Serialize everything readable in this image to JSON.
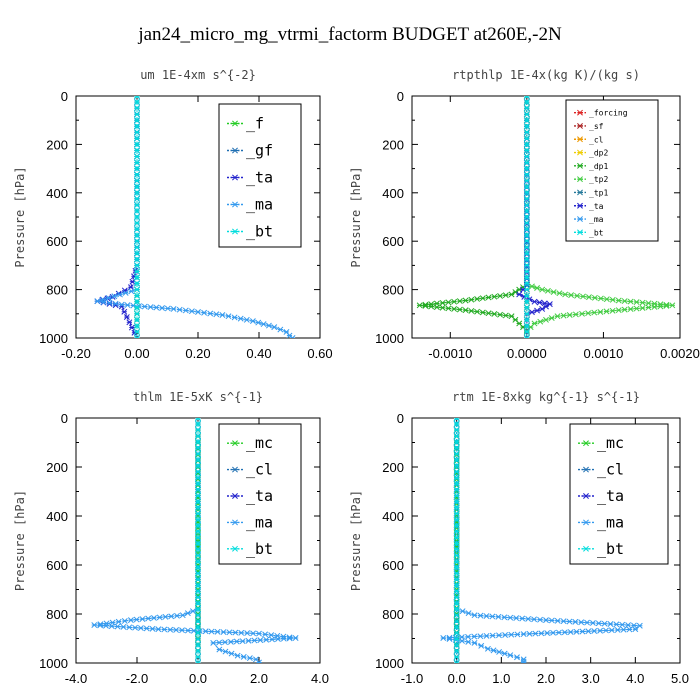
{
  "figure": {
    "title": "jan24_micro_mg_vtrmi_factorm  BUDGET at260E,-2N"
  },
  "chart_data": [
    {
      "type": "line",
      "title": "um  1E-4xm s^{-2}",
      "ylabel": "Pressure [hPa]",
      "xlim": [
        -0.2,
        0.6
      ],
      "ylim": [
        1000,
        0
      ],
      "xticks": [
        "-0.20",
        "0.00",
        "0.20",
        "0.40",
        "0.60"
      ],
      "yticks": [
        "0",
        "200",
        "400",
        "600",
        "800",
        "1000"
      ],
      "legend": "top-right",
      "series": [
        {
          "name": "_f",
          "color": "#22cc22",
          "values": [
            [
              0,
              0
            ],
            [
              0,
              25
            ],
            [
              0,
              50
            ],
            [
              0,
              75
            ],
            [
              0,
              100
            ],
            [
              0,
              125
            ],
            [
              0,
              150
            ],
            [
              0,
              175
            ],
            [
              0,
              200
            ],
            [
              0,
              225
            ],
            [
              0,
              250
            ],
            [
              0,
              275
            ],
            [
              0,
              300
            ],
            [
              0,
              325
            ],
            [
              0,
              350
            ],
            [
              0,
              375
            ],
            [
              0,
              400
            ],
            [
              0,
              425
            ],
            [
              0,
              450
            ],
            [
              0,
              475
            ],
            [
              0,
              500
            ],
            [
              0,
              525
            ],
            [
              0,
              550
            ],
            [
              0,
              575
            ],
            [
              0,
              600
            ],
            [
              0,
              625
            ],
            [
              0,
              650
            ],
            [
              0,
              675
            ],
            [
              0,
              700
            ],
            [
              0,
              725
            ],
            [
              0,
              750
            ],
            [
              0,
              775
            ],
            [
              0,
              800
            ],
            [
              0,
              825
            ],
            [
              0,
              850
            ],
            [
              0,
              875
            ],
            [
              0,
              900
            ],
            [
              0,
              925
            ],
            [
              0,
              950
            ],
            [
              0,
              975
            ],
            [
              0,
              1000
            ]
          ]
        },
        {
          "name": "_gf",
          "color": "#1f6fb2",
          "values": [
            [
              0,
              0
            ],
            [
              0,
              200
            ],
            [
              0,
              400
            ],
            [
              0,
              600
            ],
            [
              0,
              800
            ],
            [
              0,
              1000
            ]
          ]
        },
        {
          "name": "_ta",
          "color": "#2222cc",
          "values": [
            [
              0,
              0
            ],
            [
              0,
              700
            ],
            [
              -0.02,
              790
            ],
            [
              -0.08,
              830
            ],
            [
              -0.13,
              848
            ],
            [
              -0.05,
              870
            ],
            [
              0,
              1000
            ]
          ]
        },
        {
          "name": "_ma",
          "color": "#3399ee",
          "values": [
            [
              0,
              0
            ],
            [
              0,
              700
            ],
            [
              0,
              800
            ],
            [
              -0.13,
              848
            ],
            [
              -0.05,
              862
            ],
            [
              0.12,
              880
            ],
            [
              0.28,
              905
            ],
            [
              0.38,
              930
            ],
            [
              0.45,
              955
            ],
            [
              0.49,
              975
            ],
            [
              0.5,
              990
            ],
            [
              0.51,
              1000
            ]
          ]
        },
        {
          "name": "_bt",
          "color": "#00dddd",
          "values": [
            [
              0,
              0
            ],
            [
              0,
              1000
            ]
          ]
        }
      ]
    },
    {
      "type": "line",
      "title": "rtpthlp  1E-4x(kg K)/(kg s)",
      "ylabel": "Pressure [hPa]",
      "xlim": [
        -0.0015,
        0.002
      ],
      "ylim": [
        1000,
        0
      ],
      "xticks": [
        "-0.0010",
        "0.0000",
        "0.0010",
        "0.0020"
      ],
      "yticks": [
        "0",
        "200",
        "400",
        "600",
        "800",
        "1000"
      ],
      "legend": "top-right",
      "series": [
        {
          "name": "_forcing",
          "color": "#dd2222",
          "values": [
            [
              0,
              0
            ],
            [
              0,
              1000
            ]
          ]
        },
        {
          "name": "_sf",
          "color": "#aa2222",
          "values": [
            [
              0,
              0
            ],
            [
              0,
              1000
            ]
          ]
        },
        {
          "name": "_cl",
          "color": "#ee9900",
          "values": [
            [
              0,
              0
            ],
            [
              0,
              1000
            ]
          ]
        },
        {
          "name": "_dp2",
          "color": "#eecc00",
          "values": [
            [
              0,
              0
            ],
            [
              0,
              1000
            ]
          ]
        },
        {
          "name": "_dp1",
          "color": "#22aa22",
          "values": [
            [
              0,
              0
            ],
            [
              0,
              700
            ],
            [
              0,
              780
            ],
            [
              -0.0001,
              800
            ],
            [
              -0.0002,
              820
            ],
            [
              -0.0008,
              845
            ],
            [
              -0.0014,
              865
            ],
            [
              -0.0008,
              885
            ],
            [
              -0.0002,
              910
            ],
            [
              -0.0001,
              940
            ],
            [
              0,
              970
            ],
            [
              0,
              1000
            ]
          ]
        },
        {
          "name": "_tp2",
          "color": "#44cc44",
          "values": [
            [
              0,
              0
            ],
            [
              0,
              700
            ],
            [
              0,
              780
            ],
            [
              0.0002,
              800
            ],
            [
              0.0005,
              820
            ],
            [
              0.0012,
              845
            ],
            [
              0.0019,
              865
            ],
            [
              0.0012,
              885
            ],
            [
              0.0004,
              910
            ],
            [
              0.0001,
              940
            ],
            [
              0,
              970
            ],
            [
              0,
              1000
            ]
          ]
        },
        {
          "name": "_tp1",
          "color": "#227799",
          "values": [
            [
              0,
              0
            ],
            [
              0,
              1000
            ]
          ]
        },
        {
          "name": "_ta",
          "color": "#2222cc",
          "values": [
            [
              0,
              0
            ],
            [
              0,
              780
            ],
            [
              -0.0001,
              820
            ],
            [
              0.0001,
              850
            ],
            [
              0.0003,
              860
            ],
            [
              0.0002,
              880
            ],
            [
              0,
              900
            ],
            [
              0,
              1000
            ]
          ]
        },
        {
          "name": "_ma",
          "color": "#3399ee",
          "values": [
            [
              0,
              0
            ],
            [
              0,
              1000
            ]
          ]
        },
        {
          "name": "_bt",
          "color": "#00dddd",
          "values": [
            [
              0,
              0
            ],
            [
              0,
              1000
            ]
          ]
        }
      ]
    },
    {
      "type": "line",
      "title": "thlm  1E-5xK s^{-1}",
      "ylabel": "Pressure [hPa]",
      "xlim": [
        -4,
        4
      ],
      "ylim": [
        1000,
        0
      ],
      "xticks": [
        "-4.0",
        "-2.0",
        "0.0",
        "2.0",
        "4.0"
      ],
      "yticks": [
        "0",
        "200",
        "400",
        "600",
        "800",
        "1000"
      ],
      "legend": "top-right",
      "series": [
        {
          "name": "_mc",
          "color": "#22cc22",
          "values": [
            [
              0,
              0
            ],
            [
              0,
              25
            ],
            [
              0,
              50
            ],
            [
              0,
              75
            ],
            [
              0,
              100
            ],
            [
              0,
              125
            ],
            [
              0,
              150
            ],
            [
              0,
              175
            ],
            [
              0,
              200
            ],
            [
              0,
              225
            ],
            [
              0,
              250
            ],
            [
              0,
              275
            ],
            [
              0,
              300
            ],
            [
              0,
              325
            ],
            [
              0,
              350
            ],
            [
              0,
              375
            ],
            [
              0,
              400
            ],
            [
              0,
              425
            ],
            [
              0,
              450
            ],
            [
              0,
              475
            ],
            [
              0,
              500
            ],
            [
              0,
              525
            ],
            [
              0,
              550
            ],
            [
              0,
              575
            ],
            [
              0,
              600
            ],
            [
              0,
              625
            ],
            [
              0,
              650
            ],
            [
              0,
              675
            ],
            [
              0,
              700
            ],
            [
              0,
              725
            ],
            [
              0,
              750
            ],
            [
              0,
              775
            ],
            [
              0,
              800
            ],
            [
              0,
              825
            ],
            [
              0,
              850
            ],
            [
              0,
              875
            ],
            [
              0,
              900
            ],
            [
              0,
              925
            ],
            [
              0,
              950
            ],
            [
              0,
              975
            ],
            [
              0,
              1000
            ]
          ]
        },
        {
          "name": "_cl",
          "color": "#1f6fb2",
          "values": [
            [
              0,
              0
            ],
            [
              0,
              1000
            ]
          ]
        },
        {
          "name": "_ta",
          "color": "#2222cc",
          "values": [
            [
              0,
              0
            ],
            [
              0,
              1000
            ]
          ]
        },
        {
          "name": "_ma",
          "color": "#3399ee",
          "values": [
            [
              0,
              0
            ],
            [
              0,
              780
            ],
            [
              -0.5,
              805
            ],
            [
              -2.2,
              825
            ],
            [
              -3.4,
              845
            ],
            [
              -1.3,
              862
            ],
            [
              2.0,
              880
            ],
            [
              3.2,
              898
            ],
            [
              0.5,
              918
            ],
            [
              0.7,
              945
            ],
            [
              1.3,
              970
            ],
            [
              1.9,
              985
            ],
            [
              2.0,
              998
            ]
          ]
        },
        {
          "name": "_bt",
          "color": "#00dddd",
          "values": [
            [
              0,
              0
            ],
            [
              0,
              1000
            ]
          ]
        }
      ]
    },
    {
      "type": "line",
      "title": "rtm  1E-8xkg kg^{-1} s^{-1}",
      "ylabel": "Pressure [hPa]",
      "xlim": [
        -1,
        5
      ],
      "ylim": [
        1000,
        0
      ],
      "xticks": [
        "-1.0",
        "0.0",
        "1.0",
        "2.0",
        "3.0",
        "4.0",
        "5.0"
      ],
      "yticks": [
        "0",
        "200",
        "400",
        "600",
        "800",
        "1000"
      ],
      "legend": "top-right",
      "series": [
        {
          "name": "_mc",
          "color": "#22cc22",
          "values": [
            [
              0,
              0
            ],
            [
              0,
              25
            ],
            [
              0,
              50
            ],
            [
              0,
              75
            ],
            [
              0,
              100
            ],
            [
              0,
              125
            ],
            [
              0,
              150
            ],
            [
              0,
              175
            ],
            [
              0,
              200
            ],
            [
              0,
              225
            ],
            [
              0,
              250
            ],
            [
              0,
              275
            ],
            [
              0,
              300
            ],
            [
              0,
              325
            ],
            [
              0,
              350
            ],
            [
              0,
              375
            ],
            [
              0,
              400
            ],
            [
              0,
              425
            ],
            [
              0,
              450
            ],
            [
              0,
              475
            ],
            [
              0,
              500
            ],
            [
              0,
              525
            ],
            [
              0,
              550
            ],
            [
              0,
              575
            ],
            [
              0,
              600
            ],
            [
              0,
              625
            ],
            [
              0,
              650
            ],
            [
              0,
              675
            ],
            [
              0,
              700
            ],
            [
              0,
              725
            ],
            [
              0,
              750
            ],
            [
              0,
              775
            ],
            [
              0,
              800
            ],
            [
              0,
              825
            ],
            [
              0,
              850
            ],
            [
              0,
              875
            ],
            [
              0,
              900
            ],
            [
              0,
              925
            ],
            [
              0,
              950
            ],
            [
              0,
              975
            ],
            [
              0,
              1000
            ]
          ]
        },
        {
          "name": "_cl",
          "color": "#1f6fb2",
          "values": [
            [
              0,
              0
            ],
            [
              0,
              1000
            ]
          ]
        },
        {
          "name": "_ta",
          "color": "#2222cc",
          "values": [
            [
              0,
              0
            ],
            [
              0,
              1000
            ]
          ]
        },
        {
          "name": "_ma",
          "color": "#3399ee",
          "values": [
            [
              0,
              0
            ],
            [
              0,
              780
            ],
            [
              0.4,
              805
            ],
            [
              2.0,
              825
            ],
            [
              4.1,
              848
            ],
            [
              4.0,
              862
            ],
            [
              1.5,
              882
            ],
            [
              -0.3,
              898
            ],
            [
              0.4,
              918
            ],
            [
              0.7,
              942
            ],
            [
              1.2,
              968
            ],
            [
              1.5,
              985
            ],
            [
              1.5,
              998
            ]
          ]
        },
        {
          "name": "_bt",
          "color": "#00dddd",
          "values": [
            [
              0,
              0
            ],
            [
              0,
              1000
            ]
          ]
        }
      ]
    }
  ]
}
